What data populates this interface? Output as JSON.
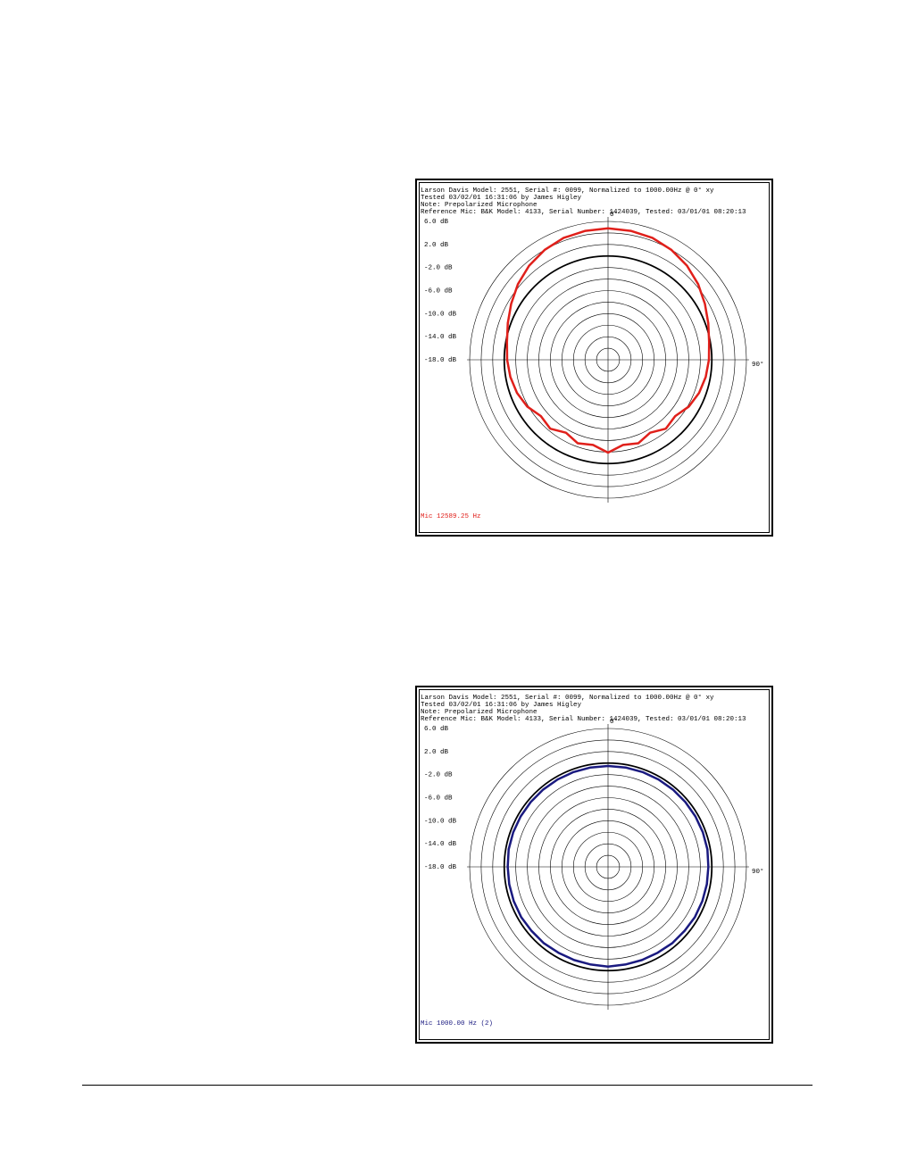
{
  "chart_data": [
    {
      "type": "polar",
      "header": [
        "Larson Davis Model: 2551, Serial #: 0099, Normalized to 1000.00Hz @ 0° xy",
        "Tested 03/02/01 16:31:06 by James Higley",
        "Note: Prepolarized Microphone",
        "Reference Mic: B&K Model: 4133, Serial Number: 1424039, Tested: 03/01/01 08:20:13"
      ],
      "rlim": [
        -18,
        6
      ],
      "rticks": [
        {
          "value": 6,
          "label": "6.0 dB"
        },
        {
          "value": 2,
          "label": "2.0 dB"
        },
        {
          "value": -2,
          "label": "-2.0 dB"
        },
        {
          "value": -6,
          "label": "-6.0 dB"
        },
        {
          "value": -10,
          "label": "-10.0 dB"
        },
        {
          "value": -14,
          "label": "-14.0 dB"
        },
        {
          "value": -18,
          "label": "-18.0 dB"
        }
      ],
      "rgrid": [
        -16,
        -14,
        -12,
        -10,
        -8,
        -6,
        -4,
        -2,
        0,
        2,
        4,
        6
      ],
      "reference": 0,
      "angle_labels": [
        {
          "value": 0,
          "label": "0°"
        },
        {
          "value": 90,
          "label": "90°"
        }
      ],
      "theta": [
        0,
        10,
        20,
        30,
        40,
        50,
        60,
        70,
        80,
        90,
        100,
        110,
        120,
        130,
        140,
        150,
        160,
        170,
        180,
        190,
        200,
        210,
        220,
        230,
        240,
        250,
        260,
        270,
        280,
        290,
        300,
        310,
        320,
        330,
        340,
        350
      ],
      "series": [
        {
          "name": "Mic 12589.25 Hz",
          "color": "#e0201b",
          "values": [
            4.8,
            4.7,
            4.5,
            4.0,
            3.3,
            2.4,
            1.4,
            0.5,
            -0.2,
            -0.5,
            -0.8,
            -1.2,
            -1.8,
            -2.8,
            -2.4,
            -3.4,
            -2.6,
            -3.0,
            -1.9,
            -3.0,
            -2.6,
            -3.4,
            -2.4,
            -2.8,
            -1.8,
            -1.2,
            -0.8,
            -0.5,
            -0.2,
            0.5,
            1.4,
            2.4,
            3.3,
            4.0,
            4.5,
            4.7
          ]
        }
      ]
    },
    {
      "type": "polar",
      "header": [
        "Larson Davis Model: 2551, Serial #: 0099, Normalized to 1000.00Hz @ 0° xy",
        "Tested 03/02/01 16:31:06 by James Higley",
        "Note: Prepolarized Microphone",
        "Reference Mic: B&K Model: 4133, Serial Number: 1424039, Tested: 03/01/01 08:20:13"
      ],
      "rlim": [
        -18,
        6
      ],
      "rticks": [
        {
          "value": 6,
          "label": "6.0 dB"
        },
        {
          "value": 2,
          "label": "2.0 dB"
        },
        {
          "value": -2,
          "label": "-2.0 dB"
        },
        {
          "value": -6,
          "label": "-6.0 dB"
        },
        {
          "value": -10,
          "label": "-10.0 dB"
        },
        {
          "value": -14,
          "label": "-14.0 dB"
        },
        {
          "value": -18,
          "label": "-18.0 dB"
        }
      ],
      "rgrid": [
        -16,
        -14,
        -12,
        -10,
        -8,
        -6,
        -4,
        -2,
        0,
        2,
        4,
        6
      ],
      "reference": 0,
      "angle_labels": [
        {
          "value": 0,
          "label": "0°"
        },
        {
          "value": 90,
          "label": "90°"
        }
      ],
      "theta": [
        0,
        10,
        20,
        30,
        40,
        50,
        60,
        70,
        80,
        90,
        100,
        110,
        120,
        130,
        140,
        150,
        160,
        170,
        180,
        190,
        200,
        210,
        220,
        230,
        240,
        250,
        260,
        270,
        280,
        290,
        300,
        310,
        320,
        330,
        340,
        350
      ],
      "series": [
        {
          "name": "Mic 1000.00 Hz (2)",
          "color": "#1a1a80",
          "values": [
            -0.5,
            -0.5,
            -0.5,
            -0.5,
            -0.5,
            -0.5,
            -0.5,
            -0.5,
            -0.5,
            -0.6,
            -0.6,
            -0.6,
            -0.6,
            -0.7,
            -0.7,
            -0.8,
            -0.8,
            -0.8,
            -0.7,
            -0.8,
            -0.8,
            -0.8,
            -0.7,
            -0.7,
            -0.6,
            -0.6,
            -0.6,
            -0.6,
            -0.5,
            -0.5,
            -0.5,
            -0.5,
            -0.5,
            -0.5,
            -0.5,
            -0.5
          ]
        }
      ]
    }
  ]
}
